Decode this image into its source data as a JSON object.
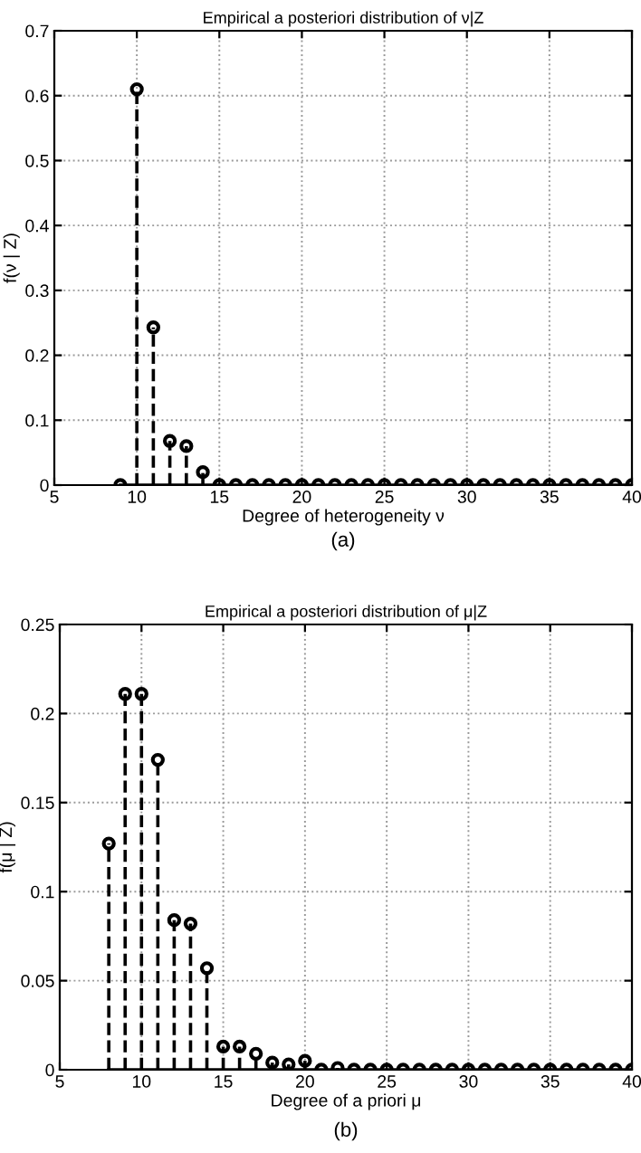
{
  "chart_data": [
    {
      "type": "lollipop",
      "title": "Empirical a posteriori distribution of ν|Z",
      "xlabel": "Degree of heterogeneity ν",
      "ylabel": "f(ν | Z)",
      "x": [
        9,
        10,
        11,
        12,
        13,
        14,
        15,
        16,
        17,
        18,
        19,
        20,
        21,
        22,
        23,
        24,
        25,
        26,
        27,
        28,
        29,
        30,
        31,
        32,
        33,
        34,
        35,
        36,
        37,
        38,
        39,
        40
      ],
      "values": [
        0,
        0.61,
        0.243,
        0.068,
        0.06,
        0.02,
        0,
        0,
        0,
        0,
        0,
        0,
        0,
        0,
        0,
        0,
        0,
        0,
        0,
        0,
        0,
        0,
        0,
        0,
        0,
        0,
        0,
        0,
        0,
        0,
        0,
        0
      ],
      "color": "#000000",
      "marker": "circle",
      "line_style": "dashed",
      "grid": true,
      "xlim": [
        5,
        40
      ],
      "xticks": [
        5,
        10,
        15,
        20,
        25,
        30,
        35,
        40
      ],
      "ylim": [
        0,
        0.7
      ],
      "yticks": [
        0,
        0.1,
        0.2,
        0.3,
        0.4,
        0.5,
        0.6,
        0.7
      ],
      "annotations": [
        "(a)"
      ]
    },
    {
      "type": "lollipop",
      "title": "Empirical a posteriori distribution of μ|Z",
      "xlabel": "Degree of a priori μ",
      "ylabel": "f(μ | Z)",
      "x": [
        8,
        9,
        10,
        11,
        12,
        13,
        14,
        15,
        16,
        17,
        18,
        19,
        20,
        21,
        22,
        23,
        24,
        25,
        26,
        27,
        28,
        29,
        30,
        31,
        32,
        33,
        34,
        35,
        36,
        37,
        38,
        39,
        40
      ],
      "values": [
        0.127,
        0.211,
        0.211,
        0.174,
        0.084,
        0.082,
        0.057,
        0.013,
        0.013,
        0.009,
        0.004,
        0.003,
        0.005,
        0,
        0.001,
        0,
        0,
        0,
        0,
        0,
        0,
        0,
        0,
        0,
        0,
        0,
        0,
        0,
        0,
        0,
        0,
        0,
        0
      ],
      "color": "#000000",
      "marker": "circle",
      "line_style": "dashed",
      "grid": true,
      "xlim": [
        5,
        40
      ],
      "xticks": [
        5,
        10,
        15,
        20,
        25,
        30,
        35,
        40
      ],
      "ylim": [
        0,
        0.25
      ],
      "yticks": [
        0,
        0.05,
        0.1,
        0.15,
        0.2,
        0.25
      ],
      "annotations": [
        "(b)"
      ]
    }
  ]
}
